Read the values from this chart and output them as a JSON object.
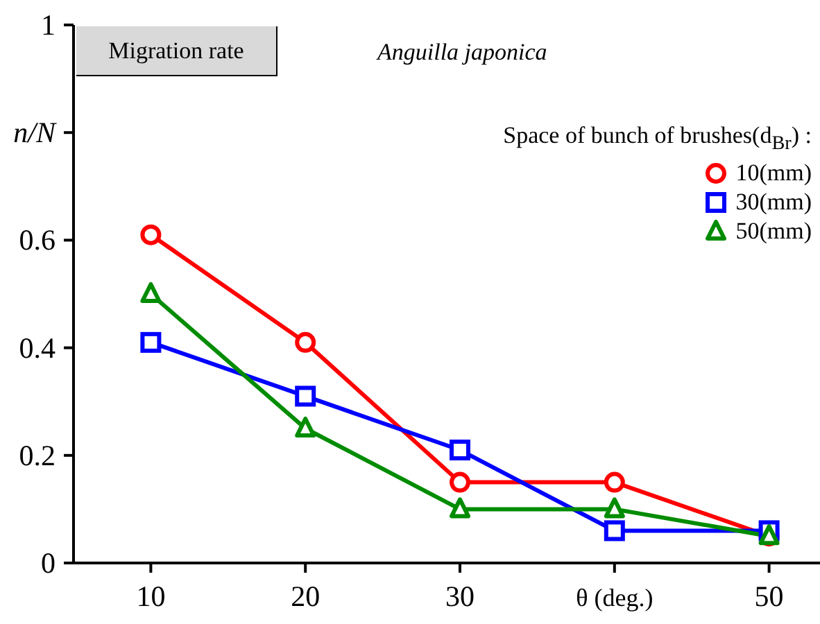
{
  "chart_data": {
    "type": "line",
    "annotations": [
      "Migration rate",
      "Anguilla japonica"
    ],
    "legend_title": "Space of bunch of brushes(d$_{Br}$) :",
    "legend": "top right",
    "x": [
      10,
      20,
      30,
      40,
      50
    ],
    "series": [
      {
        "name": "10(mm)",
        "color": "#ff0000",
        "marker": "circle",
        "values": [
          0.61,
          0.41,
          0.15,
          0.15,
          0.05
        ]
      },
      {
        "name": "30(mm)",
        "color": "#0000ff",
        "marker": "square",
        "values": [
          0.41,
          0.31,
          0.21,
          0.06,
          0.06
        ]
      },
      {
        "name": "50(mm)",
        "color": "#008c00",
        "marker": "triangle",
        "values": [
          0.5,
          0.25,
          0.1,
          0.1,
          0.05
        ]
      }
    ],
    "xlim": [
      5,
      55
    ],
    "xticks": [
      10,
      20,
      30,
      {
        "value": 40,
        "label": "θ (deg.)"
      },
      50
    ],
    "ylim": [
      0,
      1
    ],
    "yticks": [
      0,
      0.2,
      0.4,
      0.6,
      {
        "value": 0.8,
        "label": "n/N"
      },
      1
    ],
    "grid": false
  }
}
